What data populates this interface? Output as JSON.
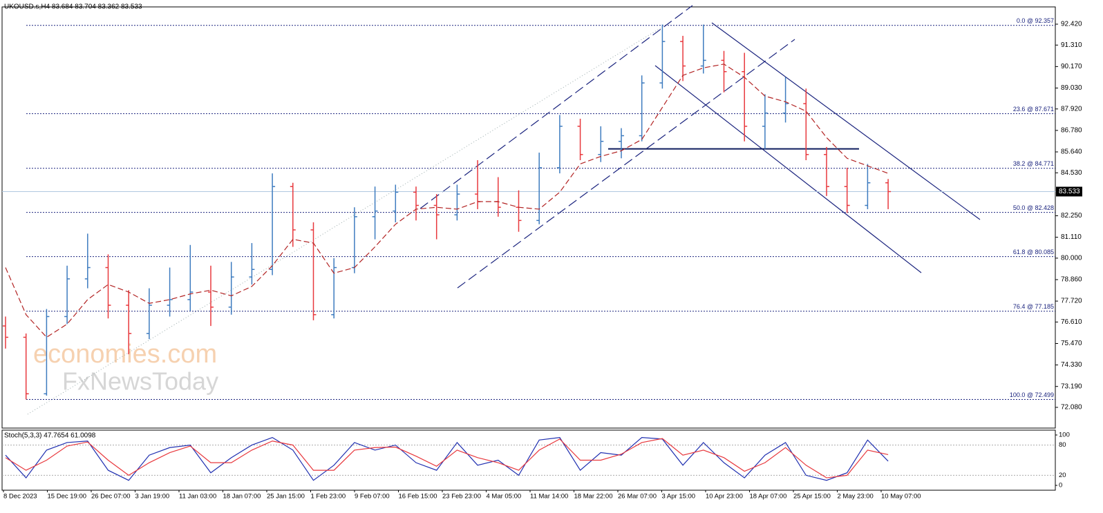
{
  "chart_data": {
    "type": "ohlc",
    "title": "UKOUSD.s,H4  83.684 83.704 83.362 83.533",
    "watermark": [
      "economies.com",
      "FxNewsToday"
    ],
    "up_color": "#3d7bbf",
    "down_color": "#e8383d",
    "ylim": [
      70.98,
      93.336
    ],
    "yticks": [
      {
        "value": 92.42,
        "label": "92.420"
      },
      {
        "value": 91.31,
        "label": "91.310"
      },
      {
        "value": 90.17,
        "label": "90.170"
      },
      {
        "value": 89.03,
        "label": "89.030"
      },
      {
        "value": 87.92,
        "label": "87.920"
      },
      {
        "value": 86.78,
        "label": "86.780"
      },
      {
        "value": 85.64,
        "label": "85.640"
      },
      {
        "value": 84.53,
        "label": "84.530"
      },
      {
        "value": 82.25,
        "label": "82.250"
      },
      {
        "value": 81.11,
        "label": "81.110"
      },
      {
        "value": 80.0,
        "label": "80.000"
      },
      {
        "value": 78.86,
        "label": "78.860"
      },
      {
        "value": 77.72,
        "label": "77.720"
      },
      {
        "value": 76.61,
        "label": "76.610"
      },
      {
        "value": 75.47,
        "label": "75.470"
      },
      {
        "value": 74.33,
        "label": "74.330"
      },
      {
        "value": 73.19,
        "label": "73.190"
      },
      {
        "value": 72.08,
        "label": "72.080"
      }
    ],
    "current_price": {
      "value": 83.533,
      "label": "83.533"
    },
    "x_labels": [
      "8 Dec 2023",
      "15 Dec 19:00",
      "26 Dec 07:00",
      "3 Jan 19:00",
      "11 Jan 03:00",
      "18 Jan 07:00",
      "25 Jan 15:00",
      "1 Feb 23:00",
      "9 Feb 07:00",
      "16 Feb 15:00",
      "23 Feb 23:00",
      "4 Mar 05:00",
      "11 Mar 14:00",
      "18 Mar 22:00",
      "26 Mar 07:00",
      "3 Apr 15:00",
      "10 Apr 23:00",
      "18 Apr 07:00",
      "25 Apr 15:00",
      "2 May 23:00",
      "10 May 07:00"
    ],
    "open": [
      76.4,
      75.8,
      72.8,
      76.9,
      78.9,
      79.5,
      77.5,
      76.0,
      77.5,
      77.8,
      78.2,
      77.4,
      79.0,
      79.4,
      83.8,
      81.5,
      77.0,
      79.5,
      82.2,
      82.5,
      83.5,
      82.8,
      82.3,
      83.4,
      83.0,
      82.7,
      82.0,
      84.8,
      87.0,
      85.5,
      86.2,
      86.5,
      89.3,
      91.5,
      90.2,
      90.5,
      89.9,
      87.0,
      87.7,
      88.2,
      85.5,
      83.8,
      82.8,
      84.0
    ],
    "high": [
      76.9,
      76.0,
      77.3,
      79.6,
      81.3,
      80.2,
      78.3,
      78.4,
      79.5,
      80.7,
      79.6,
      79.8,
      80.8,
      84.5,
      84.0,
      81.9,
      80.0,
      82.7,
      83.8,
      83.9,
      83.8,
      83.4,
      83.9,
      85.2,
      84.3,
      83.6,
      85.6,
      87.6,
      87.4,
      87.0,
      86.9,
      89.7,
      92.4,
      91.8,
      92.4,
      91.0,
      90.9,
      88.7,
      89.6,
      89.0,
      85.9,
      84.8,
      85.0,
      84.2
    ],
    "low": [
      75.2,
      72.5,
      72.7,
      76.5,
      78.4,
      76.8,
      74.9,
      75.7,
      76.9,
      77.2,
      76.4,
      77.0,
      78.6,
      79.1,
      80.6,
      76.7,
      76.8,
      79.2,
      81.0,
      81.9,
      82.0,
      81.0,
      82.0,
      82.6,
      82.2,
      81.4,
      81.8,
      84.5,
      85.2,
      85.1,
      85.3,
      86.2,
      89.0,
      89.4,
      89.8,
      88.8,
      86.2,
      85.8,
      87.2,
      85.2,
      83.3,
      82.4,
      82.6,
      82.6
    ],
    "close": [
      75.8,
      72.8,
      76.9,
      78.9,
      79.5,
      77.5,
      76.0,
      77.5,
      77.8,
      78.2,
      77.4,
      79.0,
      79.4,
      83.8,
      81.5,
      77.0,
      79.5,
      82.2,
      82.5,
      83.5,
      82.8,
      82.3,
      83.4,
      83.0,
      82.7,
      82.0,
      84.8,
      87.0,
      85.5,
      86.2,
      86.5,
      89.3,
      91.5,
      90.2,
      90.5,
      89.9,
      87.0,
      87.7,
      88.2,
      85.5,
      83.8,
      82.8,
      84.0,
      83.533
    ],
    "ma": {
      "color": "#b22222",
      "values": [
        79.5,
        77.0,
        75.8,
        76.5,
        77.8,
        78.6,
        78.2,
        77.6,
        77.8,
        78.1,
        78.3,
        78.0,
        78.5,
        79.6,
        81.0,
        80.8,
        79.2,
        79.5,
        80.6,
        81.8,
        82.6,
        82.7,
        82.6,
        83.0,
        83.0,
        82.7,
        82.6,
        83.5,
        85.0,
        85.4,
        85.7,
        86.3,
        88.0,
        89.7,
        90.1,
        90.3,
        89.6,
        88.6,
        88.3,
        87.8,
        86.4,
        85.3,
        84.9,
        84.5
      ]
    },
    "fib": [
      {
        "label": "0.0 @ 92.357",
        "value": 92.357
      },
      {
        "label": "23.6 @ 87.671",
        "value": 87.671
      },
      {
        "label": "38.2 @ 84.771",
        "value": 84.771
      },
      {
        "label": "50.0 @ 82.428",
        "value": 82.428
      },
      {
        "label": "61.8 @ 80.085",
        "value": 80.085
      },
      {
        "label": "76.4 @ 77.185",
        "value": 77.185
      },
      {
        "label": "100.0 @ 72.499",
        "value": 72.499
      }
    ],
    "fib_color": "#1a237e",
    "support_level": 85.8,
    "stoch": {
      "title": "Stoch(5,3,3) 47.7654 61.0098",
      "ylim": [
        0,
        100
      ],
      "yticks": [
        100,
        80,
        20,
        0
      ],
      "series": [
        {
          "color": "#1f2fb0",
          "values": [
            60,
            15,
            70,
            85,
            88,
            30,
            10,
            60,
            75,
            80,
            25,
            55,
            80,
            95,
            70,
            10,
            40,
            85,
            70,
            80,
            45,
            30,
            85,
            40,
            50,
            20,
            90,
            95,
            30,
            65,
            60,
            95,
            92,
            40,
            85,
            45,
            15,
            60,
            85,
            20,
            10,
            25,
            90,
            48
          ]
        },
        {
          "color": "#e8383d",
          "values": [
            55,
            30,
            50,
            78,
            86,
            50,
            20,
            45,
            65,
            78,
            45,
            45,
            70,
            88,
            80,
            30,
            30,
            70,
            75,
            76,
            58,
            38,
            70,
            55,
            45,
            30,
            70,
            92,
            50,
            50,
            62,
            85,
            93,
            60,
            70,
            55,
            28,
            45,
            75,
            40,
            15,
            20,
            70,
            61
          ]
        }
      ]
    }
  }
}
